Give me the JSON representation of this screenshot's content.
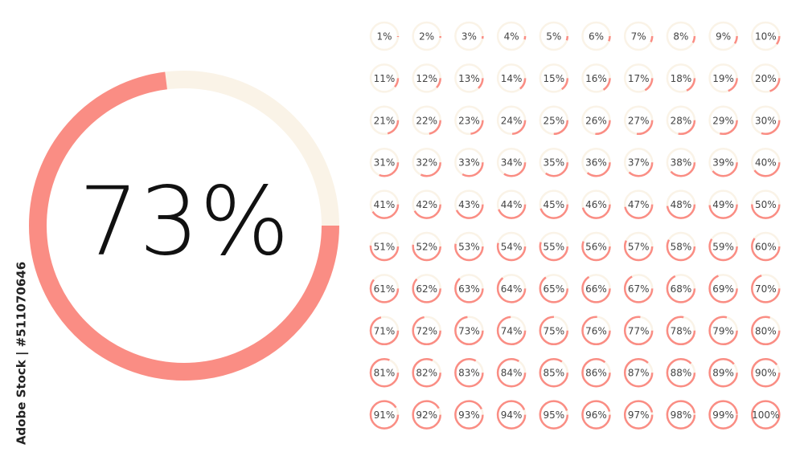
{
  "main": {
    "value": 73,
    "label": "73%"
  },
  "gauges": [
    {
      "value": 1,
      "label": "1%"
    },
    {
      "value": 2,
      "label": "2%"
    },
    {
      "value": 3,
      "label": "3%"
    },
    {
      "value": 4,
      "label": "4%"
    },
    {
      "value": 5,
      "label": "5%"
    },
    {
      "value": 6,
      "label": "6%"
    },
    {
      "value": 7,
      "label": "7%"
    },
    {
      "value": 8,
      "label": "8%"
    },
    {
      "value": 9,
      "label": "9%"
    },
    {
      "value": 10,
      "label": "10%"
    },
    {
      "value": 11,
      "label": "11%"
    },
    {
      "value": 12,
      "label": "12%"
    },
    {
      "value": 13,
      "label": "13%"
    },
    {
      "value": 14,
      "label": "14%"
    },
    {
      "value": 15,
      "label": "15%"
    },
    {
      "value": 16,
      "label": "16%"
    },
    {
      "value": 17,
      "label": "17%"
    },
    {
      "value": 18,
      "label": "18%"
    },
    {
      "value": 19,
      "label": "19%"
    },
    {
      "value": 20,
      "label": "20%"
    },
    {
      "value": 21,
      "label": "21%"
    },
    {
      "value": 22,
      "label": "22%"
    },
    {
      "value": 23,
      "label": "23%"
    },
    {
      "value": 24,
      "label": "24%"
    },
    {
      "value": 25,
      "label": "25%"
    },
    {
      "value": 26,
      "label": "26%"
    },
    {
      "value": 27,
      "label": "27%"
    },
    {
      "value": 28,
      "label": "28%"
    },
    {
      "value": 29,
      "label": "29%"
    },
    {
      "value": 30,
      "label": "30%"
    },
    {
      "value": 31,
      "label": "31%"
    },
    {
      "value": 32,
      "label": "32%"
    },
    {
      "value": 33,
      "label": "33%"
    },
    {
      "value": 34,
      "label": "34%"
    },
    {
      "value": 35,
      "label": "35%"
    },
    {
      "value": 36,
      "label": "36%"
    },
    {
      "value": 37,
      "label": "37%"
    },
    {
      "value": 38,
      "label": "38%"
    },
    {
      "value": 39,
      "label": "39%"
    },
    {
      "value": 40,
      "label": "40%"
    },
    {
      "value": 41,
      "label": "41%"
    },
    {
      "value": 42,
      "label": "42%"
    },
    {
      "value": 43,
      "label": "43%"
    },
    {
      "value": 44,
      "label": "44%"
    },
    {
      "value": 45,
      "label": "45%"
    },
    {
      "value": 46,
      "label": "46%"
    },
    {
      "value": 47,
      "label": "47%"
    },
    {
      "value": 48,
      "label": "48%"
    },
    {
      "value": 49,
      "label": "49%"
    },
    {
      "value": 50,
      "label": "50%"
    },
    {
      "value": 51,
      "label": "51%"
    },
    {
      "value": 52,
      "label": "52%"
    },
    {
      "value": 53,
      "label": "53%"
    },
    {
      "value": 54,
      "label": "54%"
    },
    {
      "value": 55,
      "label": "55%"
    },
    {
      "value": 56,
      "label": "56%"
    },
    {
      "value": 57,
      "label": "57%"
    },
    {
      "value": 58,
      "label": "58%"
    },
    {
      "value": 59,
      "label": "59%"
    },
    {
      "value": 60,
      "label": "60%"
    },
    {
      "value": 61,
      "label": "61%"
    },
    {
      "value": 62,
      "label": "62%"
    },
    {
      "value": 63,
      "label": "63%"
    },
    {
      "value": 64,
      "label": "64%"
    },
    {
      "value": 65,
      "label": "65%"
    },
    {
      "value": 66,
      "label": "66%"
    },
    {
      "value": 67,
      "label": "67%"
    },
    {
      "value": 68,
      "label": "68%"
    },
    {
      "value": 69,
      "label": "69%"
    },
    {
      "value": 70,
      "label": "70%"
    },
    {
      "value": 71,
      "label": "71%"
    },
    {
      "value": 72,
      "label": "72%"
    },
    {
      "value": 73,
      "label": "73%"
    },
    {
      "value": 74,
      "label": "74%"
    },
    {
      "value": 75,
      "label": "75%"
    },
    {
      "value": 76,
      "label": "76%"
    },
    {
      "value": 77,
      "label": "77%"
    },
    {
      "value": 78,
      "label": "78%"
    },
    {
      "value": 79,
      "label": "79%"
    },
    {
      "value": 80,
      "label": "80%"
    },
    {
      "value": 81,
      "label": "81%"
    },
    {
      "value": 82,
      "label": "82%"
    },
    {
      "value": 83,
      "label": "83%"
    },
    {
      "value": 84,
      "label": "84%"
    },
    {
      "value": 85,
      "label": "85%"
    },
    {
      "value": 86,
      "label": "86%"
    },
    {
      "value": 87,
      "label": "87%"
    },
    {
      "value": 88,
      "label": "88%"
    },
    {
      "value": 89,
      "label": "89%"
    },
    {
      "value": 90,
      "label": "90%"
    },
    {
      "value": 91,
      "label": "91%"
    },
    {
      "value": 92,
      "label": "92%"
    },
    {
      "value": 93,
      "label": "93%"
    },
    {
      "value": 94,
      "label": "94%"
    },
    {
      "value": 95,
      "label": "95%"
    },
    {
      "value": 96,
      "label": "96%"
    },
    {
      "value": 97,
      "label": "97%"
    },
    {
      "value": 98,
      "label": "98%"
    },
    {
      "value": 99,
      "label": "99%"
    },
    {
      "value": 100,
      "label": "100%"
    }
  ],
  "credit": "Adobe Stock | #511070646"
}
